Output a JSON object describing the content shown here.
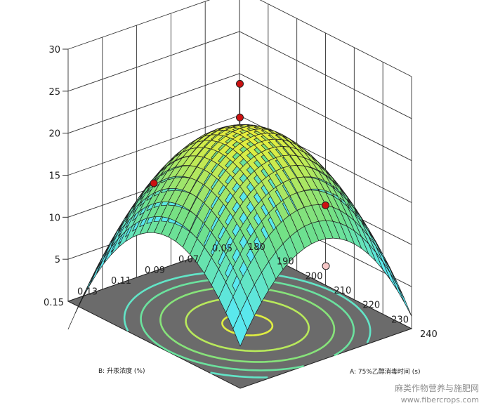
{
  "chart_data": {
    "type": "surface3d",
    "xlabel": "A: 75%乙醇消毒时间 (s)",
    "ylabel": "B: 升汞浓度 (%)",
    "zlabel": "",
    "x_ticks": [
      "180",
      "190",
      "200",
      "210",
      "220",
      "230",
      "240"
    ],
    "y_ticks": [
      "0.05",
      "0.07",
      "0.09",
      "0.11",
      "0.13",
      "0.15"
    ],
    "z_ticks": [
      "5",
      "10",
      "15",
      "20",
      "25",
      "30"
    ],
    "xlim": [
      180,
      240
    ],
    "ylim": [
      0.05,
      0.15
    ],
    "zlim": [
      0,
      30
    ],
    "surface_model": {
      "center_x": 215,
      "center_y": 0.104,
      "peak": 23,
      "curvature_x": 12.5,
      "curvature_y": 11
    },
    "design_points": [
      {
        "x": 210,
        "y": 0.1,
        "z": 27.5
      },
      {
        "x": 210,
        "y": 0.1,
        "z": 23.5
      },
      {
        "x": 180,
        "y": 0.1,
        "z": 10.5
      },
      {
        "x": 240,
        "y": 0.1,
        "z": 11
      },
      {
        "x": 210,
        "y": 0.05,
        "z": 9.5
      }
    ],
    "contour_levels": [
      11,
      14,
      17,
      20,
      22.5
    ],
    "grid": true,
    "colors": {
      "surface_low": "#59e8f0",
      "surface_mid": "#6fe089",
      "surface_high": "#e8ef3c",
      "floor": "#6b6b6b",
      "design_point": "#cc1111",
      "design_point_light": "#f5c6c6"
    }
  },
  "watermark": {
    "line1": "麻类作物营养与施肥网",
    "line2": "www.fibercrops.com"
  }
}
